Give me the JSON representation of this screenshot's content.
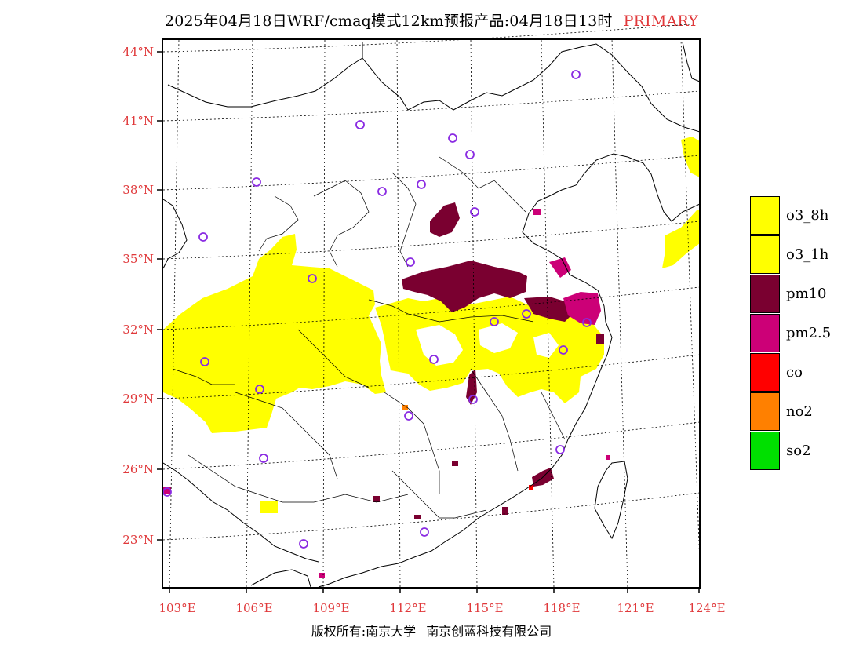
{
  "title": {
    "main": "2025年04月18日WRF/cmaq模式12km预报产品:04月18日13时",
    "tag": "PRIMARY"
  },
  "colors": {
    "axis_label": "#e0393b",
    "o3_8h": "#ffff00",
    "o3_1h": "#ffff00",
    "pm10": "#7a0030",
    "pm2_5": "#cc0077",
    "co": "#ff0000",
    "no2": "#ff8000",
    "so2": "#00e000",
    "station_marker": "#8a2be2"
  },
  "lat_labels": [
    "44°N",
    "41°N",
    "38°N",
    "35°N",
    "32°N",
    "29°N",
    "26°N",
    "23°N"
  ],
  "lon_labels": [
    "103°E",
    "106°E",
    "109°E",
    "112°E",
    "115°E",
    "118°E",
    "121°E",
    "124°E"
  ],
  "legend": [
    {
      "label": "o3_8h",
      "color": "#ffff00"
    },
    {
      "label": "o3_1h",
      "color": "#ffff00"
    },
    {
      "label": "pm10",
      "color": "#7a0030"
    },
    {
      "label": "pm2.5",
      "color": "#cc0077"
    },
    {
      "label": "co",
      "color": "#ff0000"
    },
    {
      "label": "no2",
      "color": "#ff8000"
    },
    {
      "label": "so2",
      "color": "#00e000"
    }
  ],
  "footer": {
    "left": "版权所有:南京大学",
    "right": "南京创蓝科技有限公司"
  }
}
